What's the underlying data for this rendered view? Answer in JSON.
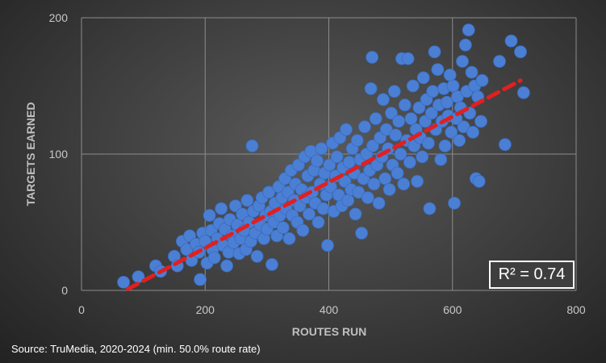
{
  "chart_data": {
    "type": "scatter",
    "xlabel": "ROUTES RUN",
    "ylabel": "TARGETS EARNED",
    "xlim": [
      0,
      800
    ],
    "ylim": [
      0,
      200
    ],
    "x_ticks": [
      "0",
      "200",
      "400",
      "600",
      "800"
    ],
    "y_ticks": [
      "0",
      "100",
      "200"
    ],
    "grid": true,
    "trendline": {
      "type": "linear",
      "x": [
        75,
        710
      ],
      "y": [
        1,
        154
      ],
      "r2_label": "R² = 0.74"
    },
    "point_color": "#4a7fd4",
    "trendline_color": "#e02020",
    "points": [
      [
        68,
        6
      ],
      [
        92,
        10
      ],
      [
        120,
        18
      ],
      [
        128,
        14
      ],
      [
        150,
        25
      ],
      [
        155,
        18
      ],
      [
        163,
        36
      ],
      [
        170,
        30
      ],
      [
        175,
        40
      ],
      [
        178,
        22
      ],
      [
        185,
        34
      ],
      [
        190,
        28
      ],
      [
        192,
        8
      ],
      [
        196,
        42
      ],
      [
        200,
        36
      ],
      [
        203,
        20
      ],
      [
        207,
        55
      ],
      [
        210,
        44
      ],
      [
        212,
        30
      ],
      [
        215,
        24
      ],
      [
        220,
        38
      ],
      [
        223,
        49
      ],
      [
        226,
        60
      ],
      [
        229,
        33
      ],
      [
        232,
        45
      ],
      [
        235,
        18
      ],
      [
        238,
        28
      ],
      [
        240,
        52
      ],
      [
        243,
        40
      ],
      [
        246,
        35
      ],
      [
        249,
        62
      ],
      [
        252,
        48
      ],
      [
        255,
        27
      ],
      [
        258,
        38
      ],
      [
        260,
        56
      ],
      [
        263,
        44
      ],
      [
        266,
        30
      ],
      [
        268,
        66
      ],
      [
        271,
        50
      ],
      [
        274,
        36
      ],
      [
        276,
        106
      ],
      [
        278,
        58
      ],
      [
        281,
        42
      ],
      [
        284,
        25
      ],
      [
        287,
        62
      ],
      [
        289,
        48
      ],
      [
        292,
        68
      ],
      [
        295,
        38
      ],
      [
        298,
        55
      ],
      [
        300,
        45
      ],
      [
        303,
        72
      ],
      [
        306,
        58
      ],
      [
        308,
        19
      ],
      [
        311,
        50
      ],
      [
        313,
        64
      ],
      [
        316,
        40
      ],
      [
        319,
        76
      ],
      [
        321,
        55
      ],
      [
        324,
        68
      ],
      [
        326,
        46
      ],
      [
        329,
        82
      ],
      [
        331,
        60
      ],
      [
        334,
        72
      ],
      [
        336,
        38
      ],
      [
        339,
        88
      ],
      [
        341,
        55
      ],
      [
        344,
        66
      ],
      [
        346,
        78
      ],
      [
        349,
        50
      ],
      [
        351,
        92
      ],
      [
        353,
        62
      ],
      [
        356,
        74
      ],
      [
        358,
        44
      ],
      [
        361,
        98
      ],
      [
        363,
        68
      ],
      [
        366,
        84
      ],
      [
        368,
        56
      ],
      [
        371,
        102
      ],
      [
        373,
        72
      ],
      [
        376,
        88
      ],
      [
        378,
        64
      ],
      [
        381,
        95
      ],
      [
        383,
        50
      ],
      [
        386,
        78
      ],
      [
        388,
        104
      ],
      [
        391,
        60
      ],
      [
        393,
        86
      ],
      [
        396,
        70
      ],
      [
        398,
        33
      ],
      [
        401,
        92
      ],
      [
        403,
        76
      ],
      [
        406,
        108
      ],
      [
        408,
        58
      ],
      [
        411,
        84
      ],
      [
        413,
        98
      ],
      [
        416,
        70
      ],
      [
        418,
        112
      ],
      [
        421,
        62
      ],
      [
        423,
        90
      ],
      [
        426,
        80
      ],
      [
        428,
        118
      ],
      [
        431,
        66
      ],
      [
        433,
        94
      ],
      [
        436,
        74
      ],
      [
        438,
        104
      ],
      [
        441,
        86
      ],
      [
        443,
        56
      ],
      [
        446,
        110
      ],
      [
        448,
        72
      ],
      [
        451,
        96
      ],
      [
        453,
        42
      ],
      [
        456,
        82
      ],
      [
        458,
        120
      ],
      [
        461,
        100
      ],
      [
        463,
        68
      ],
      [
        466,
        88
      ],
      [
        468,
        148
      ],
      [
        470,
        171
      ],
      [
        471,
        106
      ],
      [
        473,
        78
      ],
      [
        476,
        126
      ],
      [
        478,
        92
      ],
      [
        481,
        64
      ],
      [
        483,
        112
      ],
      [
        486,
        98
      ],
      [
        488,
        140
      ],
      [
        491,
        82
      ],
      [
        493,
        118
      ],
      [
        496,
        104
      ],
      [
        498,
        74
      ],
      [
        501,
        130
      ],
      [
        503,
        92
      ],
      [
        506,
        146
      ],
      [
        508,
        114
      ],
      [
        511,
        86
      ],
      [
        513,
        124
      ],
      [
        516,
        100
      ],
      [
        518,
        170
      ],
      [
        521,
        78
      ],
      [
        523,
        136
      ],
      [
        526,
        110
      ],
      [
        528,
        170
      ],
      [
        531,
        94
      ],
      [
        533,
        126
      ],
      [
        536,
        150
      ],
      [
        538,
        106
      ],
      [
        541,
        118
      ],
      [
        543,
        80
      ],
      [
        546,
        134
      ],
      [
        548,
        112
      ],
      [
        551,
        98
      ],
      [
        553,
        156
      ],
      [
        556,
        124
      ],
      [
        558,
        140
      ],
      [
        561,
        108
      ],
      [
        563,
        60
      ],
      [
        566,
        130
      ],
      [
        568,
        146
      ],
      [
        571,
        175
      ],
      [
        573,
        118
      ],
      [
        576,
        162
      ],
      [
        578,
        136
      ],
      [
        581,
        96
      ],
      [
        583,
        124
      ],
      [
        586,
        148
      ],
      [
        588,
        106
      ],
      [
        591,
        138
      ],
      [
        593,
        128
      ],
      [
        596,
        158
      ],
      [
        598,
        116
      ],
      [
        601,
        150
      ],
      [
        603,
        64
      ],
      [
        606,
        126
      ],
      [
        608,
        142
      ],
      [
        611,
        110
      ],
      [
        613,
        134
      ],
      [
        616,
        168
      ],
      [
        618,
        120
      ],
      [
        621,
        180
      ],
      [
        623,
        146
      ],
      [
        626,
        191
      ],
      [
        628,
        130
      ],
      [
        631,
        160
      ],
      [
        633,
        116
      ],
      [
        636,
        150
      ],
      [
        638,
        82
      ],
      [
        641,
        142
      ],
      [
        643,
        80
      ],
      [
        646,
        124
      ],
      [
        648,
        154
      ],
      [
        676,
        168
      ],
      [
        685,
        107
      ],
      [
        695,
        183
      ],
      [
        710,
        175
      ],
      [
        715,
        145
      ]
    ]
  },
  "source": "Source: TruMedia, 2020-2024 (min. 50.0% route rate)"
}
